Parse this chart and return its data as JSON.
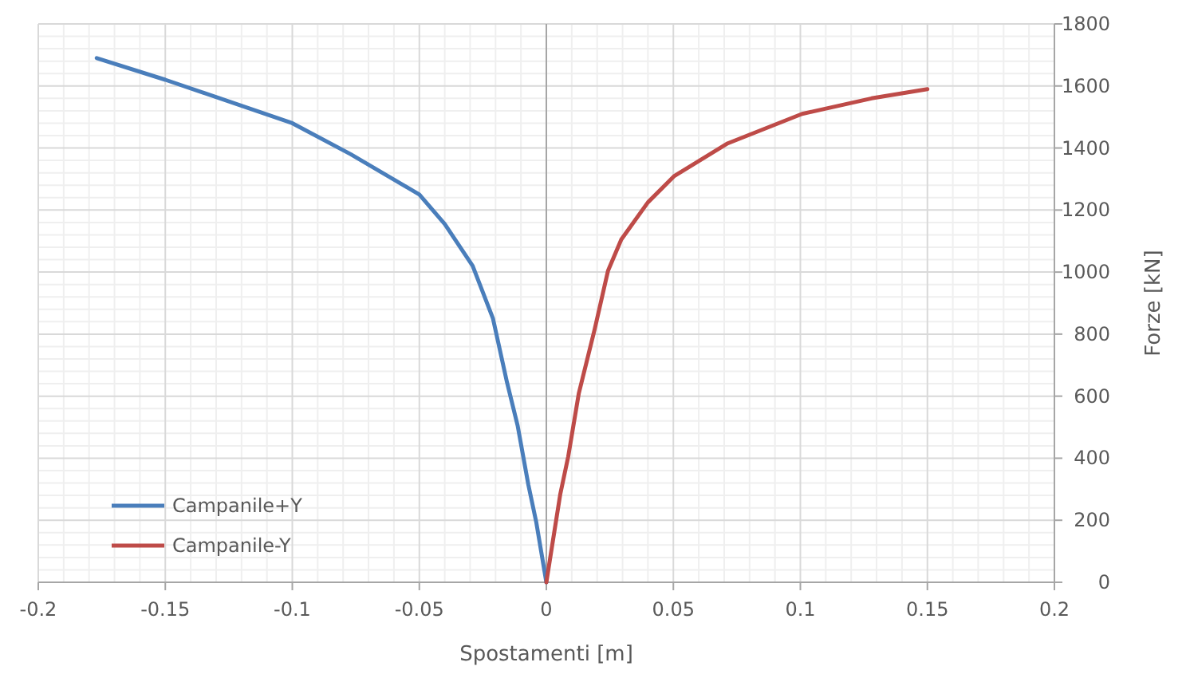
{
  "chart_data": {
    "type": "line",
    "xlabel": "Spostamenti [m]",
    "ylabel": "Forze [kN]",
    "xlim": [
      -0.2,
      0.2
    ],
    "xticks": [
      -0.2,
      -0.15,
      -0.1,
      -0.05,
      0,
      0.05,
      0.1,
      0.15,
      0.2
    ],
    "ylim": [
      0,
      1800
    ],
    "yticks": [
      0,
      200,
      400,
      600,
      800,
      1000,
      1200,
      1400,
      1600,
      1800
    ],
    "grid": true,
    "legend": "bottom left",
    "marker": "none",
    "line_style": "solid",
    "series": [
      {
        "name": "Campanile+Y",
        "color": "#4a7ebb",
        "x": [
          -0.177,
          -0.15,
          -0.1,
          -0.077,
          -0.05,
          -0.04,
          -0.029,
          -0.021,
          -0.0155,
          -0.0113,
          -0.0071,
          -0.004,
          0
        ],
        "values": [
          1690,
          1620,
          1480,
          1380,
          1250,
          1155,
          1020,
          850,
          645,
          505,
          315,
          195,
          0
        ]
      },
      {
        "name": "Campanile-Y",
        "color": "#be4b48",
        "x": [
          0,
          0.0055,
          0.0086,
          0.0128,
          0.019,
          0.0243,
          0.0295,
          0.04,
          0.0504,
          0.0714,
          0.1007,
          0.128,
          0.15
        ],
        "values": [
          0,
          285,
          405,
          610,
          815,
          1005,
          1105,
          1225,
          1310,
          1415,
          1510,
          1560,
          1590
        ]
      }
    ]
  }
}
